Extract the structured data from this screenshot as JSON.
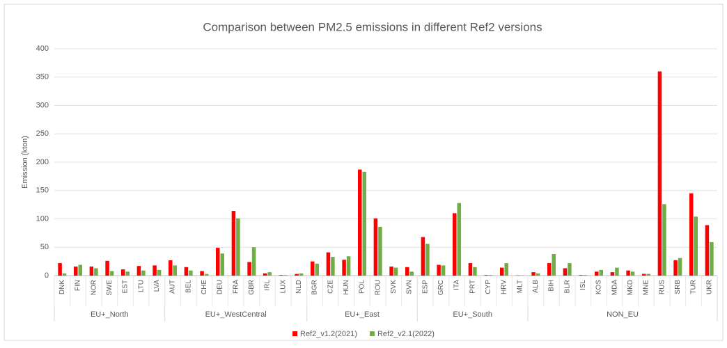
{
  "chart_data": {
    "type": "bar",
    "title": "Comparison between PM2.5 emissions in different Ref2 versions",
    "y_label": "Emission (kton)",
    "groups": [
      {
        "name": "EU+_North",
        "categories": [
          "DNK",
          "FIN",
          "NOR",
          "SWE",
          "EST",
          "LTU",
          "LVA"
        ]
      },
      {
        "name": "EU+_WestCentral",
        "categories": [
          "AUT",
          "BEL",
          "CHE",
          "DEU",
          "FRA",
          "GBR",
          "IRL",
          "LUX",
          "NLD"
        ]
      },
      {
        "name": "EU+_East",
        "categories": [
          "BGR",
          "CZE",
          "HUN",
          "POL",
          "ROU",
          "SVK",
          "SVN"
        ]
      },
      {
        "name": "EU+_South",
        "categories": [
          "ESP",
          "GRC",
          "ITA",
          "PRT",
          "CYP",
          "HRV",
          "MLT"
        ]
      },
      {
        "name": "NON_EU",
        "categories": [
          "ALB",
          "BIH",
          "BLR",
          "ISL",
          "KOS",
          "MDA",
          "MKD",
          "MNE",
          "RUS",
          "SRB",
          "TUR",
          "UKR"
        ]
      }
    ],
    "series": [
      {
        "name": "Ref2_v1.2(2021)",
        "color": "#ff0000",
        "values": [
          22,
          16,
          16,
          26,
          11,
          17,
          18,
          27,
          15,
          8,
          49,
          114,
          24,
          4,
          1,
          3,
          25,
          41,
          28,
          187,
          101,
          16,
          15,
          68,
          19,
          110,
          22,
          1,
          14,
          0.5,
          6,
          22,
          13,
          1,
          7,
          6,
          9,
          3,
          360,
          27,
          145,
          89
        ]
      },
      {
        "name": "Ref2_v2.1(2022)",
        "color": "#70ad47",
        "values": [
          4,
          19,
          13,
          8,
          7,
          9,
          10,
          18,
          9,
          3,
          39,
          101,
          50,
          6,
          1,
          4,
          21,
          33,
          34,
          183,
          86,
          14,
          7,
          56,
          18,
          128,
          15,
          1,
          22,
          0.5,
          4,
          38,
          22,
          1,
          10,
          14,
          7,
          3,
          126,
          31,
          104,
          59
        ]
      }
    ],
    "ylim": [
      0,
      400
    ],
    "yticks": [
      0,
      50,
      100,
      150,
      200,
      250,
      300,
      350,
      400
    ],
    "grid": true,
    "legend": "bottom"
  }
}
